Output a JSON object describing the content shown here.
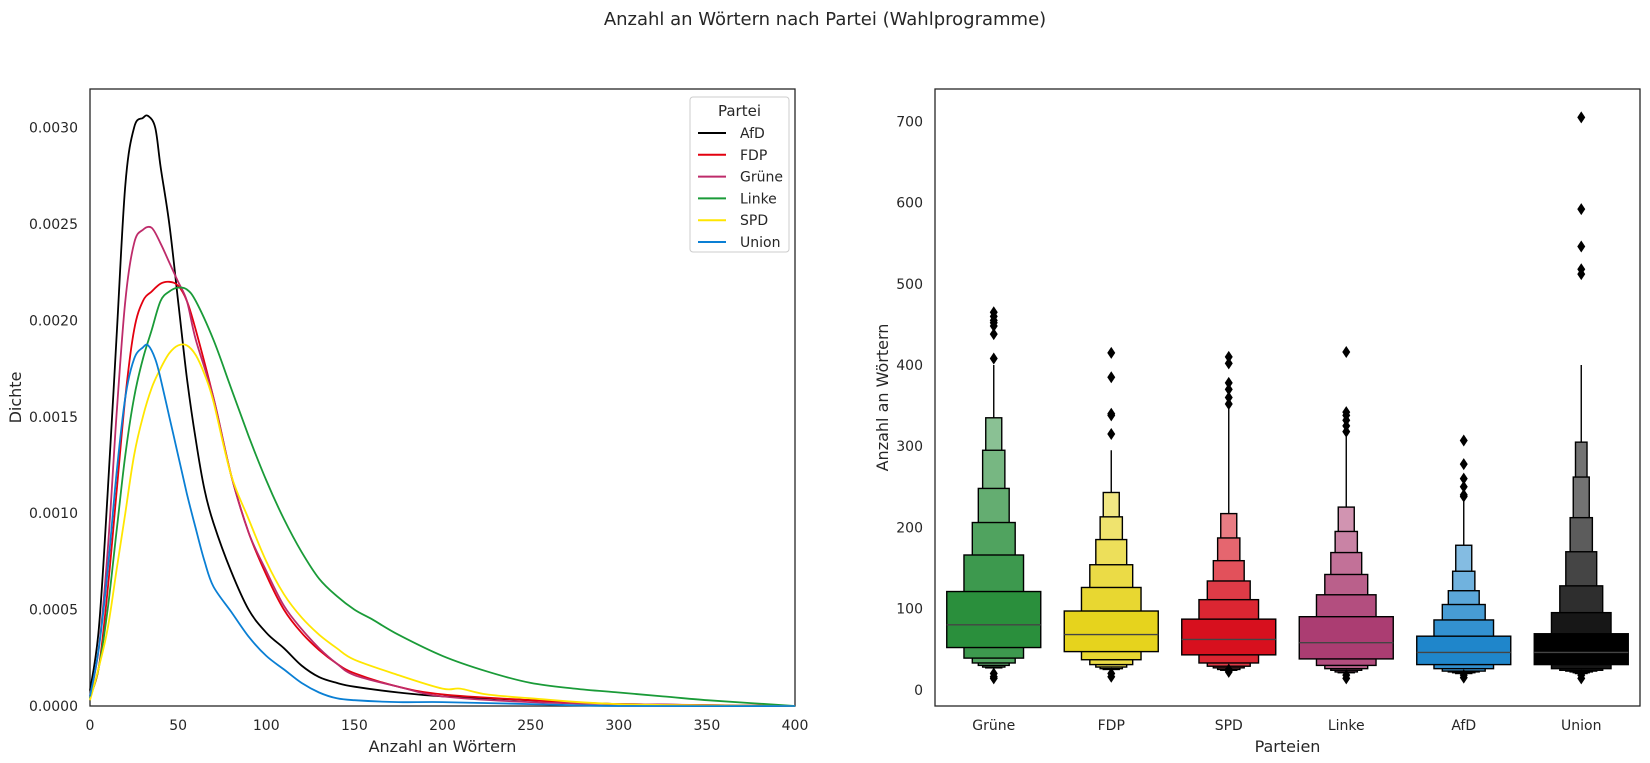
{
  "figure": {
    "title": "Anzahl an Wörtern nach Partei (Wahlprogramme)"
  },
  "chart_data": [
    {
      "type": "line",
      "subtype": "kde",
      "xlabel": "Anzahl an Wörtern",
      "ylabel": "Dichte",
      "xlim": [
        0,
        400
      ],
      "ylim": [
        0,
        0.0032
      ],
      "xticks": [
        "0",
        "50",
        "100",
        "150",
        "200",
        "250",
        "300",
        "350",
        "400"
      ],
      "yticks": [
        "0.0000",
        "0.0005",
        "0.0010",
        "0.0015",
        "0.0020",
        "0.0025",
        "0.0030"
      ],
      "grid": false,
      "legend": {
        "title": "Partei",
        "placement": "top-right"
      },
      "series": [
        {
          "name": "AfD",
          "color": "#000000",
          "x": [
            0,
            5,
            10,
            15,
            20,
            25,
            30,
            33,
            37,
            40,
            45,
            50,
            55,
            60,
            65,
            70,
            80,
            90,
            100,
            110,
            120,
            130,
            140,
            150,
            175,
            200,
            250,
            300,
            400
          ],
          "y": [
            8e-05,
            0.0004,
            0.0011,
            0.0019,
            0.0027,
            0.003,
            0.00305,
            0.00306,
            0.003,
            0.0028,
            0.0025,
            0.0021,
            0.0017,
            0.00138,
            0.00112,
            0.00095,
            0.0007,
            0.0005,
            0.00038,
            0.0003,
            0.00021,
            0.00015,
            0.00012,
            0.0001,
            7e-05,
            5e-05,
            3e-05,
            1e-05,
            0.0
          ]
        },
        {
          "name": "FDP",
          "color": "#e3000f",
          "x": [
            0,
            5,
            10,
            15,
            20,
            25,
            30,
            35,
            40,
            45,
            50,
            55,
            60,
            70,
            80,
            90,
            100,
            110,
            120,
            130,
            140,
            150,
            175,
            200,
            250,
            300,
            400
          ],
          "y": [
            5e-05,
            0.0002,
            0.0006,
            0.0011,
            0.0016,
            0.00195,
            0.0021,
            0.00215,
            0.00219,
            0.0022,
            0.00218,
            0.0021,
            0.00195,
            0.0016,
            0.0012,
            0.0009,
            0.00068,
            0.0005,
            0.00038,
            0.00029,
            0.00022,
            0.00017,
            0.0001,
            6e-05,
            3e-05,
            1e-05,
            0.0
          ]
        },
        {
          "name": "Grüne",
          "color": "#be2b6a",
          "x": [
            0,
            5,
            10,
            15,
            20,
            25,
            30,
            35,
            40,
            45,
            50,
            55,
            60,
            70,
            80,
            90,
            100,
            110,
            120,
            130,
            140,
            150,
            175,
            200,
            250,
            300,
            400
          ],
          "y": [
            5e-05,
            0.0003,
            0.0008,
            0.0015,
            0.0021,
            0.0024,
            0.00247,
            0.00248,
            0.0024,
            0.0023,
            0.0022,
            0.0021,
            0.0019,
            0.0016,
            0.0012,
            0.0009,
            0.0007,
            0.00052,
            0.0004,
            0.0003,
            0.00022,
            0.00016,
            0.0001,
            5e-05,
            2e-05,
            1e-05,
            0.0
          ]
        },
        {
          "name": "Linke",
          "color": "#1a9b38",
          "x": [
            0,
            5,
            10,
            15,
            20,
            25,
            30,
            35,
            40,
            45,
            50,
            55,
            60,
            70,
            80,
            90,
            100,
            110,
            120,
            130,
            140,
            150,
            160,
            175,
            200,
            225,
            250,
            275,
            300,
            325,
            350,
            375,
            400
          ],
          "y": [
            4e-05,
            0.0002,
            0.0005,
            0.0009,
            0.0013,
            0.0016,
            0.0018,
            0.00195,
            0.0021,
            0.00215,
            0.00217,
            0.00216,
            0.0021,
            0.0019,
            0.00165,
            0.0014,
            0.00117,
            0.00097,
            0.0008,
            0.00066,
            0.00057,
            0.0005,
            0.00045,
            0.00037,
            0.00026,
            0.00018,
            0.00012,
            9e-05,
            7e-05,
            5e-05,
            3e-05,
            1.5e-05,
            0.0
          ]
        },
        {
          "name": "SPD",
          "color": "#ffe600",
          "x": [
            0,
            5,
            10,
            15,
            20,
            25,
            30,
            35,
            40,
            45,
            50,
            55,
            60,
            65,
            70,
            80,
            90,
            100,
            110,
            120,
            130,
            140,
            150,
            175,
            200,
            210,
            225,
            250,
            300,
            400
          ],
          "y": [
            3e-05,
            0.0002,
            0.0004,
            0.0007,
            0.001,
            0.0013,
            0.0015,
            0.00165,
            0.00175,
            0.00183,
            0.00187,
            0.00187,
            0.00182,
            0.00172,
            0.00158,
            0.0012,
            0.00097,
            0.00075,
            0.00058,
            0.00046,
            0.00037,
            0.0003,
            0.00024,
            0.00016,
            9e-05,
            9e-05,
            6e-05,
            4e-05,
            1e-05,
            0.0
          ]
        },
        {
          "name": "Union",
          "color": "#0a7fd4",
          "x": [
            0,
            5,
            10,
            15,
            20,
            25,
            30,
            33,
            37,
            40,
            45,
            50,
            55,
            60,
            65,
            70,
            80,
            90,
            100,
            110,
            120,
            130,
            140,
            150,
            175,
            200,
            250,
            300,
            400
          ],
          "y": [
            5e-05,
            0.0003,
            0.0007,
            0.0012,
            0.0016,
            0.0018,
            0.00186,
            0.00187,
            0.0018,
            0.0017,
            0.0015,
            0.0013,
            0.0011,
            0.00092,
            0.00075,
            0.00062,
            0.00049,
            0.00036,
            0.00026,
            0.00019,
            0.00012,
            7e-05,
            4e-05,
            3e-05,
            2e-05,
            2e-05,
            1e-05,
            0.0,
            0.0
          ]
        }
      ]
    },
    {
      "type": "boxen",
      "xlabel": "Parteien",
      "ylabel": "Anzahl an Wörtern",
      "ylim": [
        -20,
        740
      ],
      "yticks": [
        "0",
        "100",
        "200",
        "300",
        "400",
        "500",
        "600",
        "700"
      ],
      "grid": false,
      "categories": [
        "Grüne",
        "FDP",
        "SPD",
        "Linke",
        "AfD",
        "Union"
      ],
      "series": [
        {
          "name": "Grüne",
          "color": "#2a8f3c",
          "median": 80,
          "boxes": [
            [
              52,
              121
            ],
            [
              39,
              166
            ],
            [
              33,
              206
            ],
            [
              30,
              248
            ],
            [
              28,
              295
            ],
            [
              27,
              335
            ]
          ],
          "whisker": [
            22,
            400
          ],
          "outliers": [
            465,
            460,
            455,
            452,
            448,
            438,
            408,
            20,
            16,
            14
          ]
        },
        {
          "name": "FDP",
          "color": "#e6d31d",
          "median": 68,
          "boxes": [
            [
              47,
              97
            ],
            [
              37,
              126
            ],
            [
              31,
              154
            ],
            [
              28,
              185
            ],
            [
              26,
              213
            ],
            [
              25,
              243
            ]
          ],
          "whisker": [
            22,
            295
          ],
          "outliers": [
            415,
            385,
            340,
            338,
            315,
            20,
            16
          ]
        },
        {
          "name": "SPD",
          "color": "#d7101e",
          "median": 62,
          "boxes": [
            [
              43,
              87
            ],
            [
              33,
              111
            ],
            [
              29,
              134
            ],
            [
              27,
              159
            ],
            [
              25,
              187
            ],
            [
              24,
              217
            ]
          ],
          "whisker": [
            22,
            352
          ],
          "outliers": [
            410,
            402,
            378,
            370,
            360,
            352,
            25,
            22
          ]
        },
        {
          "name": "Linke",
          "color": "#ab3d72",
          "median": 58,
          "boxes": [
            [
              38,
              90
            ],
            [
              30,
              117
            ],
            [
              26,
              142
            ],
            [
              24,
              169
            ],
            [
              22,
              195
            ],
            [
              21,
              225
            ]
          ],
          "whisker": [
            18,
            318
          ],
          "outliers": [
            416,
            342,
            338,
            332,
            325,
            318,
            18,
            14
          ]
        },
        {
          "name": "AfD",
          "color": "#1f86cb",
          "median": 46,
          "boxes": [
            [
              31,
              66
            ],
            [
              26,
              86
            ],
            [
              23,
              105
            ],
            [
              22,
              122
            ],
            [
              21,
              146
            ],
            [
              20,
              178
            ]
          ],
          "whisker": [
            17,
            232
          ],
          "outliers": [
            307,
            278,
            260,
            250,
            240,
            238,
            18,
            15
          ]
        },
        {
          "name": "Union",
          "color": "#000000",
          "median": 46,
          "boxes": [
            [
              31,
              69
            ],
            [
              26,
              95
            ],
            [
              24,
              128
            ],
            [
              23,
              170
            ],
            [
              22,
              212
            ],
            [
              21,
              262
            ],
            [
              20,
              305
            ]
          ],
          "whisker": [
            18,
            400
          ],
          "outliers": [
            705,
            592,
            546,
            518,
            512,
            18,
            14
          ]
        }
      ]
    }
  ]
}
